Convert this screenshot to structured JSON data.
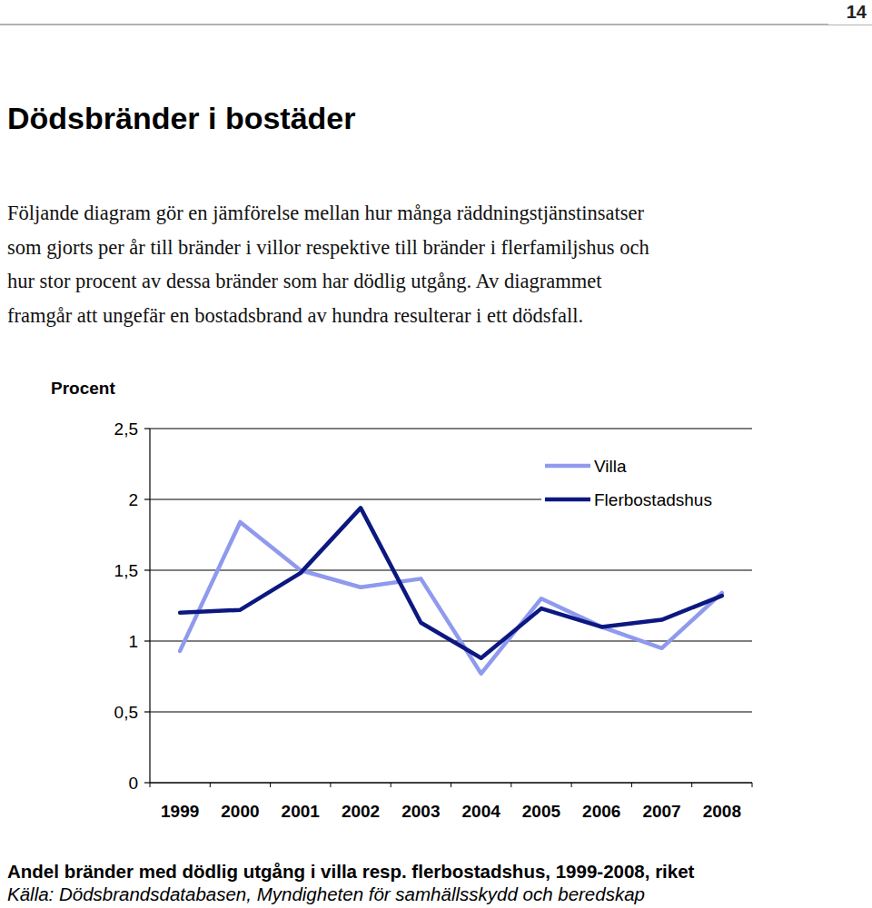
{
  "page_number": "14",
  "title": "Dödsbränder i bostäder",
  "paragraph": [
    "Följande diagram gör en jämförelse mellan hur många räddningstjänstinsatser",
    "som gjorts per år till bränder i villor respektive till bränder i flerfamiljshus och",
    "hur stor procent av dessa bränder som har dödlig utgång. Av diagrammet",
    "framgår att ungefär en bostadsbrand av hundra resulterar i ett dödsfall."
  ],
  "chart_data": {
    "type": "line",
    "title": "Andel bränder med dödlig utgång i villa resp. flerbostadshus, 1999-2008, riket",
    "subtitle": "Källa: Dödsbrandsdatabasen, Myndigheten för samhällsskydd och beredskap",
    "y_label": "Procent",
    "categories": [
      "1999",
      "2000",
      "2001",
      "2002",
      "2003",
      "2004",
      "2005",
      "2006",
      "2007",
      "2008"
    ],
    "series": [
      {
        "name": "Villa",
        "color": "#8f9aee",
        "values": [
          0.93,
          1.84,
          1.5,
          1.38,
          1.44,
          0.77,
          1.3,
          1.1,
          0.95,
          1.34
        ]
      },
      {
        "name": "Flerbostadshus",
        "color": "#0c1880",
        "values": [
          1.2,
          1.22,
          1.48,
          1.94,
          1.13,
          0.88,
          1.23,
          1.1,
          1.15,
          1.32
        ]
      }
    ],
    "ylim": [
      0,
      2.5
    ],
    "yticks": [
      0,
      {
        "value": 0.5,
        "label": "0,5"
      },
      1,
      {
        "value": 1.5,
        "label": "1,5"
      },
      2,
      {
        "value": 2.5,
        "label": "2,5"
      }
    ],
    "grid": true,
    "legend": "top-right"
  }
}
